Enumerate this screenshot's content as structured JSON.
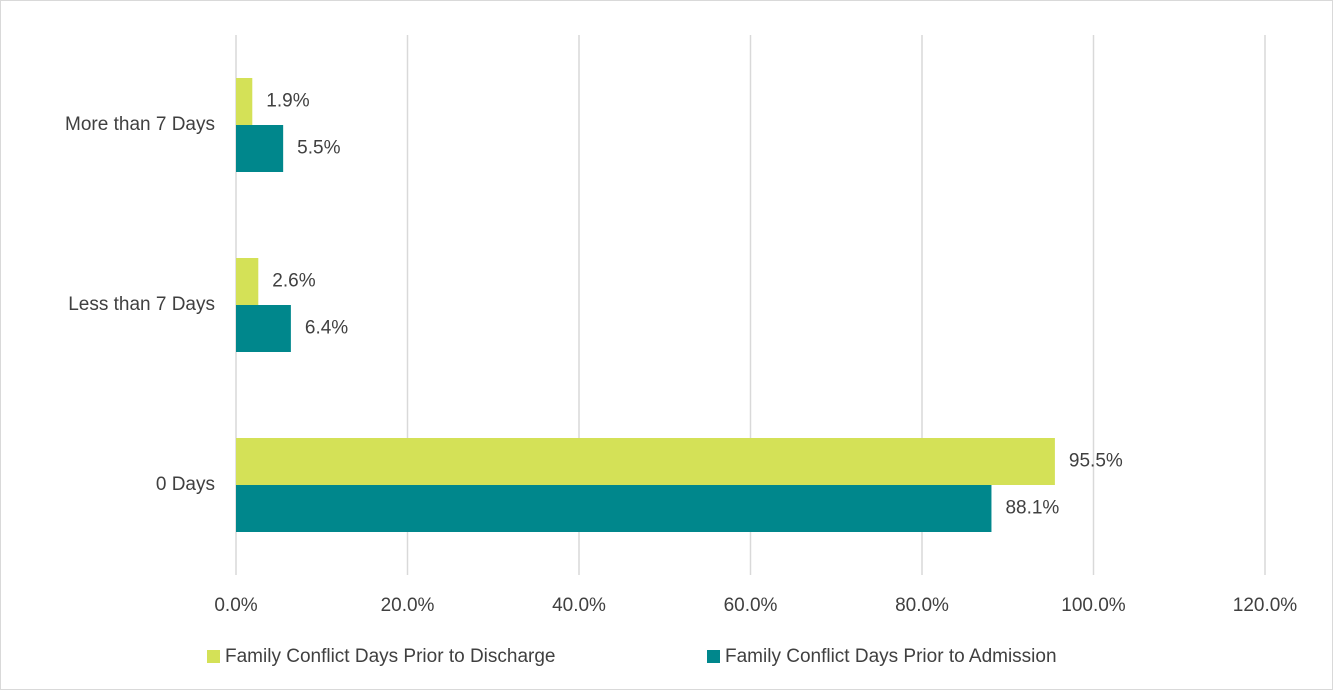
{
  "chart_data": {
    "type": "hbar",
    "categories": [
      "More than 7 Days",
      "Less than 7 Days",
      "0 Days"
    ],
    "series": [
      {
        "name": "Family Conflict Days Prior to Discharge",
        "color": "#d4e157",
        "values": [
          1.9,
          2.6,
          95.5
        ],
        "value_labels": [
          "1.9%",
          "2.6%",
          "95.5%"
        ]
      },
      {
        "name": "Family Conflict Days Prior to Admission",
        "color": "#00878c",
        "values": [
          5.5,
          6.4,
          88.1
        ],
        "value_labels": [
          "5.5%",
          "6.4%",
          "88.1%"
        ]
      }
    ],
    "xlim": [
      0,
      120
    ],
    "xticks": [
      {
        "value": 0,
        "label": "0.0%"
      },
      {
        "value": 20,
        "label": "20.0%"
      },
      {
        "value": 40,
        "label": "40.0%"
      },
      {
        "value": 60,
        "label": "60.0%"
      },
      {
        "value": 80,
        "label": "80.0%"
      },
      {
        "value": 100,
        "label": "100.0%"
      },
      {
        "value": 120,
        "label": "120.0%"
      }
    ],
    "grid": true,
    "legend": "bottom"
  }
}
